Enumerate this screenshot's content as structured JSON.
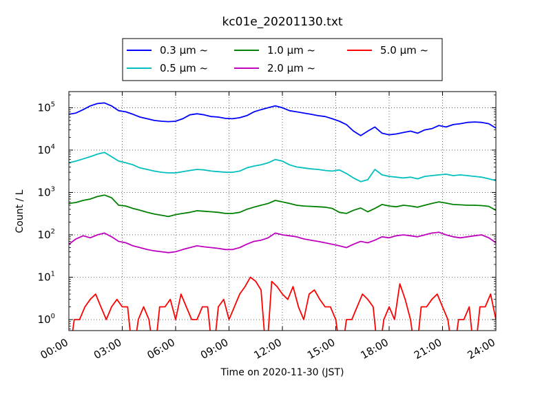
{
  "chart_data": {
    "type": "line",
    "title": "kc01e_20201130.txt",
    "xlabel": "Time on 2020-11-30 (JST)",
    "ylabel": "Count / L",
    "x_unit": "hours",
    "xlim": [
      0,
      24
    ],
    "ylim": [
      0.55,
      240000
    ],
    "yscale": "log",
    "grid": true,
    "legend_position": "top",
    "x_ticks": [
      "00:00",
      "03:00",
      "06:00",
      "09:00",
      "12:00",
      "15:00",
      "18:00",
      "21:00",
      "24:00"
    ],
    "y_ticks": [
      {
        "mantissa": "10",
        "exp": "5"
      },
      {
        "mantissa": "10",
        "exp": "4"
      },
      {
        "mantissa": "10",
        "exp": "3"
      },
      {
        "mantissa": "10",
        "exp": "2"
      },
      {
        "mantissa": "10",
        "exp": "1"
      },
      {
        "mantissa": "10",
        "exp": "0"
      }
    ],
    "series": [
      {
        "name": "0.3 μm ~",
        "color": "#0000ff",
        "x": [
          0.0,
          0.4,
          0.8,
          1.2,
          1.6,
          2.0,
          2.4,
          2.8,
          3.2,
          3.6,
          4.0,
          4.4,
          4.8,
          5.2,
          5.6,
          6.0,
          6.4,
          6.8,
          7.2,
          7.6,
          8.0,
          8.4,
          8.8,
          9.2,
          9.6,
          10.0,
          10.4,
          10.8,
          11.2,
          11.6,
          12.0,
          12.4,
          12.8,
          13.2,
          13.6,
          14.0,
          14.4,
          14.8,
          15.2,
          15.6,
          16.0,
          16.4,
          16.8,
          17.2,
          17.6,
          18.0,
          18.4,
          18.8,
          19.2,
          19.6,
          20.0,
          20.4,
          20.8,
          21.2,
          21.6,
          22.0,
          22.4,
          22.8,
          23.2,
          23.6,
          24.0
        ],
        "y": [
          70000,
          75000,
          90000,
          110000,
          125000,
          130000,
          110000,
          85000,
          80000,
          70000,
          60000,
          55000,
          50000,
          48000,
          47000,
          48000,
          55000,
          68000,
          72000,
          68000,
          62000,
          60000,
          56000,
          55000,
          58000,
          65000,
          80000,
          90000,
          100000,
          110000,
          100000,
          85000,
          80000,
          75000,
          70000,
          65000,
          62000,
          55000,
          48000,
          40000,
          28000,
          22000,
          28000,
          35000,
          25000,
          23000,
          24000,
          26000,
          28000,
          25000,
          30000,
          32000,
          38000,
          35000,
          40000,
          42000,
          45000,
          46000,
          45000,
          42000,
          33000
        ]
      },
      {
        "name": "0.5 μm ~",
        "color": "#00bfbf",
        "x": [
          0.0,
          0.4,
          0.8,
          1.2,
          1.6,
          2.0,
          2.4,
          2.8,
          3.2,
          3.6,
          4.0,
          4.4,
          4.8,
          5.2,
          5.6,
          6.0,
          6.4,
          6.8,
          7.2,
          7.6,
          8.0,
          8.4,
          8.8,
          9.2,
          9.6,
          10.0,
          10.4,
          10.8,
          11.2,
          11.6,
          12.0,
          12.4,
          12.8,
          13.2,
          13.6,
          14.0,
          14.4,
          14.8,
          15.2,
          15.6,
          16.0,
          16.4,
          16.8,
          17.2,
          17.6,
          18.0,
          18.4,
          18.8,
          19.2,
          19.6,
          20.0,
          20.4,
          20.8,
          21.2,
          21.6,
          22.0,
          22.4,
          22.8,
          23.2,
          23.6,
          24.0
        ],
        "y": [
          5000,
          5500,
          6200,
          7000,
          8000,
          8800,
          7000,
          5500,
          5000,
          4500,
          3800,
          3500,
          3200,
          3000,
          2900,
          2900,
          3100,
          3300,
          3500,
          3400,
          3200,
          3100,
          3000,
          3000,
          3200,
          3800,
          4200,
          4500,
          5000,
          6000,
          5500,
          4500,
          4000,
          3800,
          3600,
          3500,
          3300,
          3200,
          3400,
          2800,
          2200,
          1800,
          2000,
          3500,
          2600,
          2400,
          2300,
          2200,
          2300,
          2100,
          2400,
          2500,
          2600,
          2700,
          2500,
          2600,
          2500,
          2400,
          2300,
          2100,
          1900
        ]
      },
      {
        "name": "1.0 μm ~",
        "color": "#008000",
        "x": [
          0.0,
          0.4,
          0.8,
          1.2,
          1.6,
          2.0,
          2.4,
          2.8,
          3.2,
          3.6,
          4.0,
          4.4,
          4.8,
          5.2,
          5.6,
          6.0,
          6.4,
          6.8,
          7.2,
          7.6,
          8.0,
          8.4,
          8.8,
          9.2,
          9.6,
          10.0,
          10.4,
          10.8,
          11.2,
          11.6,
          12.0,
          12.4,
          12.8,
          13.2,
          13.6,
          14.0,
          14.4,
          14.8,
          15.2,
          15.6,
          16.0,
          16.4,
          16.8,
          17.2,
          17.6,
          18.0,
          18.4,
          18.8,
          19.2,
          19.6,
          20.0,
          20.4,
          20.8,
          21.2,
          21.6,
          22.0,
          22.4,
          22.8,
          23.2,
          23.6,
          24.0
        ],
        "y": [
          550,
          580,
          650,
          700,
          800,
          870,
          750,
          500,
          480,
          420,
          380,
          340,
          310,
          290,
          270,
          300,
          320,
          340,
          370,
          360,
          350,
          340,
          320,
          320,
          340,
          400,
          450,
          500,
          550,
          650,
          600,
          550,
          500,
          480,
          470,
          460,
          450,
          420,
          340,
          320,
          380,
          430,
          350,
          420,
          520,
          480,
          460,
          500,
          480,
          450,
          500,
          550,
          600,
          560,
          520,
          510,
          500,
          500,
          490,
          470,
          380
        ]
      },
      {
        "name": "2.0 μm ~",
        "color": "#bf00bf",
        "x": [
          0.0,
          0.4,
          0.8,
          1.2,
          1.6,
          2.0,
          2.4,
          2.8,
          3.2,
          3.6,
          4.0,
          4.4,
          4.8,
          5.2,
          5.6,
          6.0,
          6.4,
          6.8,
          7.2,
          7.6,
          8.0,
          8.4,
          8.8,
          9.2,
          9.6,
          10.0,
          10.4,
          10.8,
          11.2,
          11.6,
          12.0,
          12.4,
          12.8,
          13.2,
          13.6,
          14.0,
          14.4,
          14.8,
          15.2,
          15.6,
          16.0,
          16.4,
          16.8,
          17.2,
          17.6,
          18.0,
          18.4,
          18.8,
          19.2,
          19.6,
          20.0,
          20.4,
          20.8,
          21.2,
          21.6,
          22.0,
          22.4,
          22.8,
          23.2,
          23.6,
          24.0
        ],
        "y": [
          60,
          80,
          95,
          85,
          100,
          110,
          90,
          70,
          65,
          55,
          50,
          45,
          42,
          40,
          38,
          40,
          45,
          50,
          55,
          52,
          50,
          48,
          45,
          45,
          50,
          60,
          70,
          75,
          85,
          110,
          100,
          95,
          90,
          80,
          75,
          70,
          65,
          60,
          55,
          50,
          60,
          70,
          65,
          75,
          90,
          85,
          95,
          100,
          95,
          90,
          100,
          110,
          115,
          100,
          90,
          85,
          90,
          95,
          100,
          85,
          65
        ]
      },
      {
        "name": "5.0 μm ~",
        "color": "#ff0000",
        "x": [
          0.0,
          0.3,
          0.6,
          0.9,
          1.2,
          1.5,
          1.8,
          2.1,
          2.4,
          2.7,
          3.0,
          3.3,
          3.6,
          3.9,
          4.2,
          4.5,
          4.8,
          5.1,
          5.4,
          5.7,
          6.0,
          6.3,
          6.6,
          6.9,
          7.2,
          7.5,
          7.8,
          8.1,
          8.4,
          8.7,
          9.0,
          9.3,
          9.6,
          9.9,
          10.2,
          10.5,
          10.8,
          11.1,
          11.4,
          11.7,
          12.0,
          12.3,
          12.6,
          12.9,
          13.2,
          13.5,
          13.8,
          14.1,
          14.4,
          14.7,
          15.0,
          15.3,
          15.6,
          15.9,
          16.2,
          16.5,
          16.8,
          17.1,
          17.4,
          17.7,
          18.0,
          18.3,
          18.6,
          18.9,
          19.2,
          19.5,
          19.8,
          20.1,
          20.4,
          20.7,
          21.0,
          21.3,
          21.6,
          21.9,
          22.2,
          22.5,
          22.8,
          23.1,
          23.4,
          23.7,
          24.0
        ],
        "y": [
          0,
          1,
          1,
          2,
          3,
          4,
          2,
          1,
          2,
          3,
          2,
          2,
          0,
          1,
          2,
          1,
          0,
          2,
          2,
          3,
          1,
          4,
          2,
          1,
          1,
          2,
          2,
          0,
          2,
          3,
          1,
          2,
          4,
          6,
          10,
          8,
          5,
          0,
          8,
          6,
          4,
          3,
          6,
          2,
          1,
          4,
          5,
          3,
          2,
          2,
          1,
          0,
          1,
          1,
          2,
          4,
          3,
          2,
          0,
          1,
          2,
          1,
          7,
          3,
          1,
          0,
          2,
          2,
          3,
          4,
          2,
          1,
          0,
          1,
          1,
          2,
          0,
          2,
          2,
          4,
          1
        ]
      }
    ]
  }
}
